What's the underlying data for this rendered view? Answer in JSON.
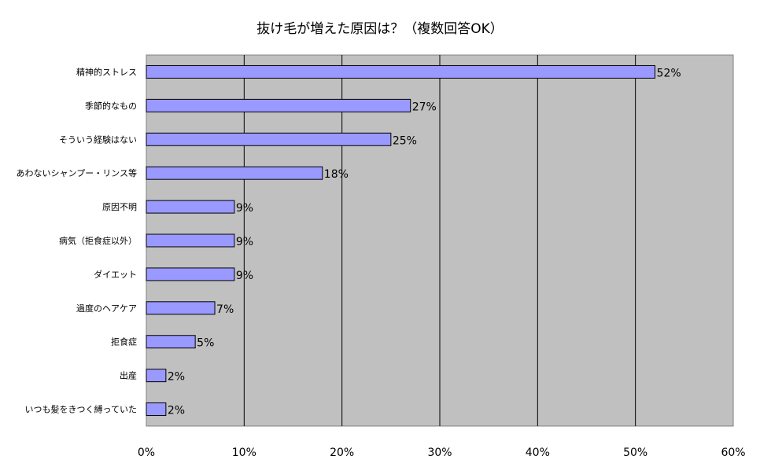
{
  "chart_data": {
    "type": "bar",
    "orientation": "horizontal",
    "title": "抜け毛が増えた原因は？（複数回答OK）",
    "categories": [
      "精神的ストレス",
      "季節的なもの",
      "そういう経験はない",
      "あわないシャンプー・リンス等",
      "原因不明",
      "病気（拒食症以外）",
      "ダイエット",
      "過度のヘアケア",
      "拒食症",
      "出産",
      "いつも髪をきつく縛っていた"
    ],
    "values": [
      52,
      27,
      25,
      18,
      9,
      9,
      9,
      7,
      5,
      2,
      2
    ],
    "data_labels": [
      "52%",
      "27%",
      "25%",
      "18%",
      "9%",
      "9%",
      "9%",
      "7%",
      "5%",
      "2%",
      "2%"
    ],
    "xlim": [
      0,
      60
    ],
    "x_ticks": [
      0,
      10,
      20,
      30,
      40,
      50,
      60
    ],
    "x_tick_labels": [
      "0%",
      "10%",
      "20%",
      "30%",
      "40%",
      "50%",
      "60%"
    ],
    "grid": true,
    "colors": {
      "bar": "#9999ff",
      "plot_bg": "#c0c0c0",
      "grid": "#000000"
    }
  }
}
